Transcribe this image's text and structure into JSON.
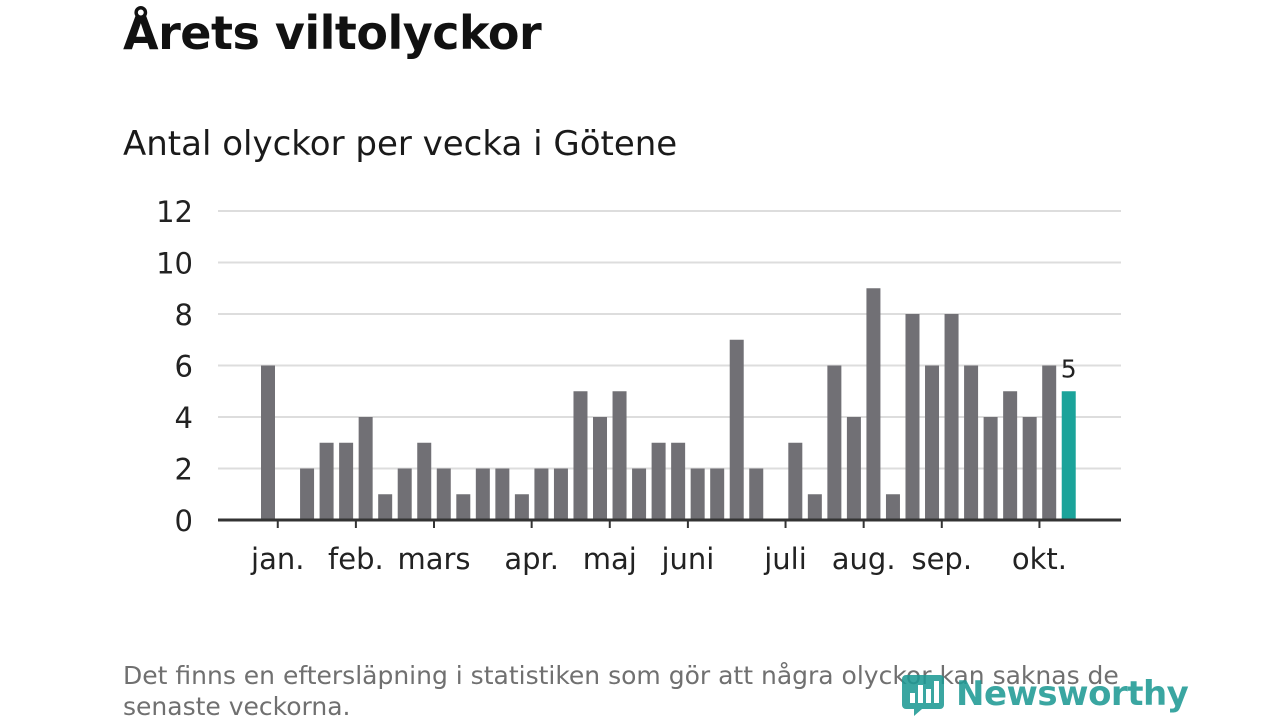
{
  "title": "Årets viltolyckor",
  "footnote": "Det finns en eftersläpning i statistiken som gör att några olyckor kan saknas de senaste veckorna.",
  "brand": {
    "name": "Newsworthy",
    "icon": "newsworthy-logo-icon",
    "color": "#1f9a95"
  },
  "colors": {
    "bar": "#717075",
    "highlight": "#1aa39a",
    "grid": "#dddddd",
    "axis": "#333333"
  },
  "chart_data": {
    "type": "bar",
    "title": "Antal olyckor per vecka i Götene",
    "xlabel": "",
    "ylabel": "",
    "ylim": [
      0,
      12
    ],
    "yticks": [
      0,
      2,
      4,
      6,
      8,
      10,
      12
    ],
    "grid": true,
    "weeks": [
      1,
      2,
      3,
      4,
      5,
      6,
      7,
      8,
      9,
      10,
      11,
      12,
      13,
      14,
      15,
      16,
      17,
      18,
      19,
      20,
      21,
      22,
      23,
      24,
      25,
      26,
      27,
      28,
      29,
      30,
      31,
      32,
      33,
      34,
      35,
      36,
      37,
      38,
      39,
      40,
      41,
      42
    ],
    "values": [
      6,
      0,
      2,
      3,
      3,
      4,
      1,
      2,
      3,
      2,
      1,
      2,
      2,
      1,
      2,
      2,
      5,
      4,
      5,
      2,
      3,
      3,
      2,
      2,
      7,
      2,
      0,
      3,
      1,
      6,
      4,
      9,
      1,
      8,
      6,
      8,
      6,
      4,
      5,
      4,
      6,
      5
    ],
    "month_ticks": [
      {
        "label": "jan.",
        "week": 1
      },
      {
        "label": "feb.",
        "week": 5
      },
      {
        "label": "mars",
        "week": 9
      },
      {
        "label": "apr.",
        "week": 14
      },
      {
        "label": "maj",
        "week": 18
      },
      {
        "label": "juni",
        "week": 22
      },
      {
        "label": "juli",
        "week": 27
      },
      {
        "label": "aug.",
        "week": 31
      },
      {
        "label": "sep.",
        "week": 35
      },
      {
        "label": "okt.",
        "week": 40
      }
    ],
    "highlight": {
      "week": 42,
      "label": "5"
    }
  }
}
